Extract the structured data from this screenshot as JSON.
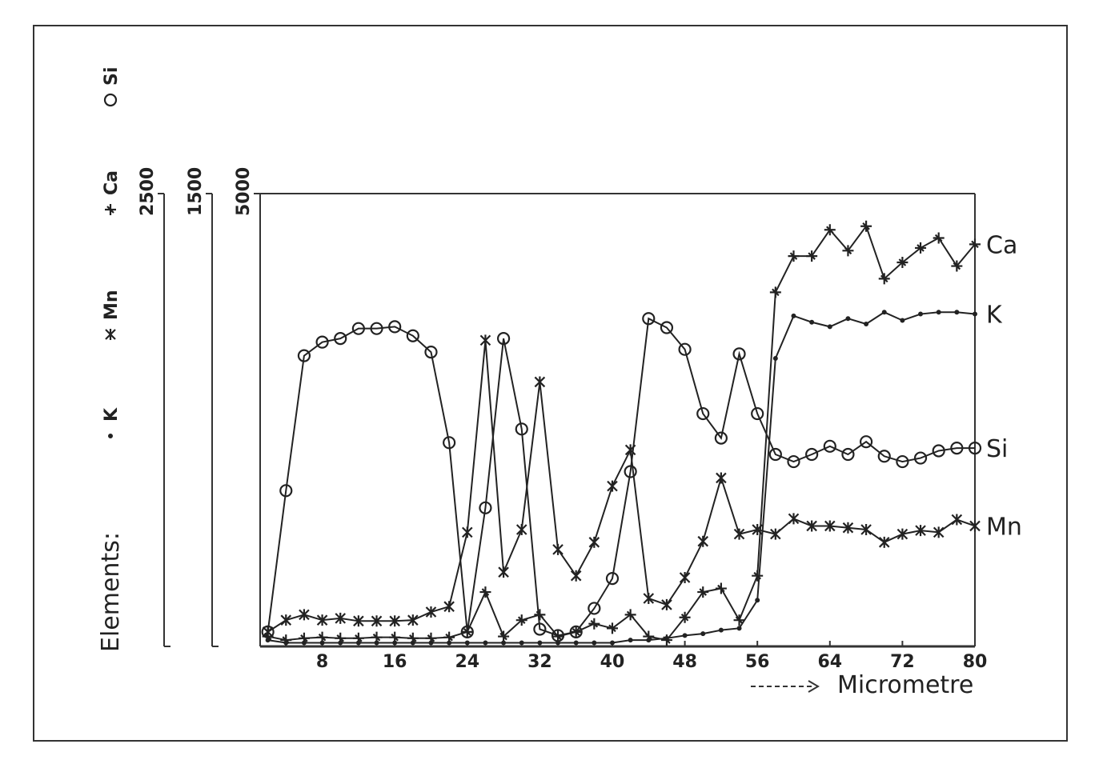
{
  "chart_data": {
    "type": "line",
    "legend_title": "Elements:",
    "x_label": "Micrometre",
    "x": [
      2,
      4,
      6,
      8,
      10,
      12,
      14,
      16,
      18,
      20,
      22,
      24,
      26,
      28,
      30,
      32,
      34,
      36,
      38,
      40,
      42,
      44,
      46,
      48,
      50,
      52,
      54,
      56,
      58,
      60,
      62,
      64,
      66,
      68,
      70,
      72,
      74,
      76,
      78,
      80
    ],
    "xlim": [
      1.15,
      80
    ],
    "xticks": [
      8,
      16,
      24,
      32,
      40,
      48,
      56,
      64,
      72,
      80
    ],
    "yaxes": [
      {
        "lim": [
          0,
          2500
        ],
        "ticks": [
          2500
        ]
      },
      {
        "lim": [
          0,
          1500
        ],
        "ticks": [
          1500
        ]
      },
      {
        "lim": [
          0,
          5000
        ],
        "ticks": [
          5000
        ]
      }
    ],
    "series": [
      {
        "name": "K",
        "marker": "dot",
        "axis": 2,
        "color": "#222222",
        "values": [
          70,
          40,
          40,
          40,
          40,
          40,
          40,
          40,
          40,
          40,
          40,
          40,
          40,
          40,
          40,
          40,
          40,
          40,
          40,
          40,
          70,
          70,
          90,
          120,
          140,
          180,
          200,
          510,
          3180,
          3650,
          3580,
          3530,
          3620,
          3560,
          3690,
          3600,
          3670,
          3690,
          3690,
          3670
        ]
      },
      {
        "name": "Mn",
        "marker": "x",
        "axis": 2,
        "color": "#222222",
        "values": [
          160,
          290,
          350,
          290,
          310,
          280,
          280,
          280,
          290,
          380,
          440,
          1260,
          3380,
          820,
          1290,
          2920,
          1070,
          780,
          1150,
          1770,
          2170,
          530,
          460,
          760,
          1160,
          1860,
          1240,
          1290,
          1240,
          1410,
          1330,
          1330,
          1310,
          1290,
          1150,
          1240,
          1280,
          1260,
          1400,
          1330
        ]
      },
      {
        "name": "Ca",
        "marker": "plus",
        "axis": 2,
        "color": "#222222",
        "values": [
          110,
          70,
          90,
          100,
          90,
          90,
          100,
          100,
          90,
          90,
          100,
          160,
          600,
          110,
          290,
          350,
          110,
          160,
          250,
          200,
          350,
          110,
          70,
          320,
          600,
          640,
          290,
          780,
          3910,
          4310,
          4310,
          4600,
          4370,
          4640,
          4060,
          4240,
          4400,
          4510,
          4200,
          4440
        ]
      },
      {
        "name": "Si",
        "marker": "circle",
        "axis": 2,
        "color": "#222222",
        "values": [
          160,
          1720,
          3210,
          3360,
          3400,
          3510,
          3510,
          3530,
          3430,
          3250,
          2250,
          160,
          1530,
          3400,
          2400,
          190,
          120,
          160,
          420,
          750,
          1930,
          3620,
          3520,
          3280,
          2570,
          2300,
          3230,
          2570,
          2120,
          2040,
          2120,
          2210,
          2120,
          2260,
          2100,
          2040,
          2080,
          2160,
          2190,
          2190
        ]
      }
    ]
  }
}
